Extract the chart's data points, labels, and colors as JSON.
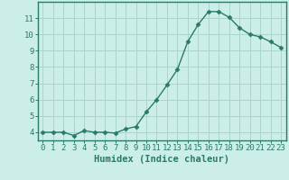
{
  "x": [
    0,
    1,
    2,
    3,
    4,
    5,
    6,
    7,
    8,
    9,
    10,
    11,
    12,
    13,
    14,
    15,
    16,
    17,
    18,
    19,
    20,
    21,
    22,
    23
  ],
  "y": [
    4.0,
    4.0,
    4.0,
    3.8,
    4.1,
    4.0,
    4.0,
    3.95,
    4.2,
    4.35,
    5.25,
    6.0,
    6.9,
    7.85,
    9.55,
    10.6,
    11.4,
    11.4,
    11.05,
    10.4,
    10.0,
    9.85,
    9.55,
    9.2
  ],
  "line_color": "#2a7a6a",
  "marker": "D",
  "marker_size": 2.5,
  "bg_color": "#cceee8",
  "grid_color": "#aad4cc",
  "axis_color": "#2a7a6a",
  "xlabel": "Humidex (Indice chaleur)",
  "ylim": [
    3.5,
    12.0
  ],
  "xlim": [
    -0.5,
    23.5
  ],
  "yticks": [
    4,
    5,
    6,
    7,
    8,
    9,
    10,
    11
  ],
  "xtick_labels": [
    "0",
    "1",
    "2",
    "3",
    "4",
    "5",
    "6",
    "7",
    "8",
    "9",
    "10",
    "11",
    "12",
    "13",
    "14",
    "15",
    "16",
    "17",
    "18",
    "19",
    "20",
    "21",
    "22",
    "23"
  ],
  "xlabel_fontsize": 7.5,
  "tick_fontsize": 6.5,
  "linewidth": 1.0
}
